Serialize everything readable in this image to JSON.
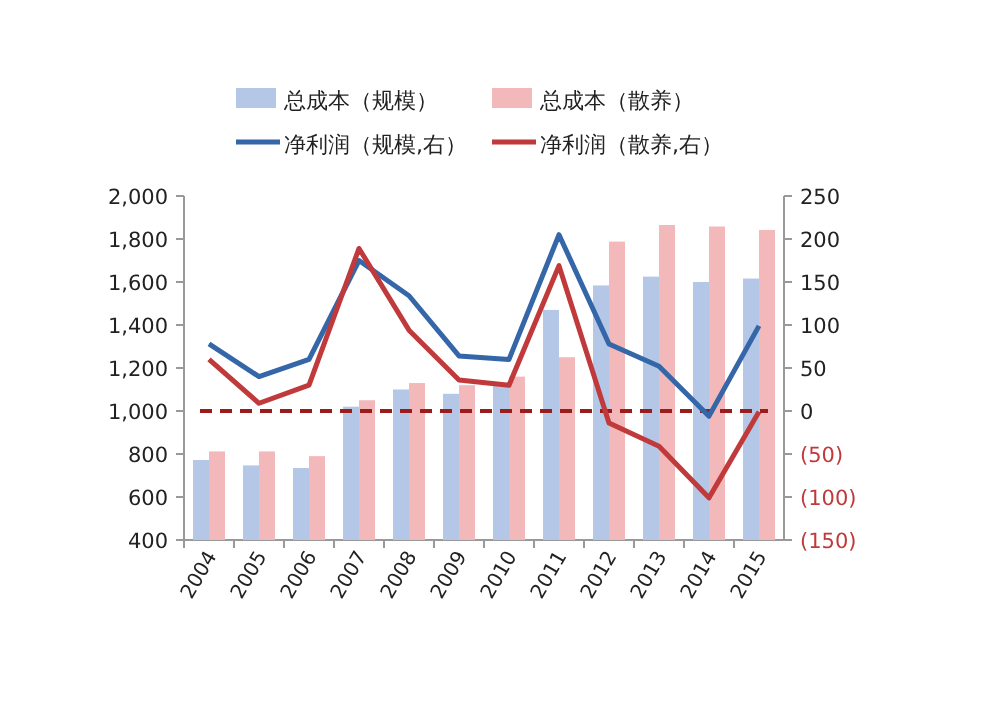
{
  "chart_data": {
    "type": "bar",
    "categories": [
      "2004",
      "2005",
      "2006",
      "2007",
      "2008",
      "2009",
      "2010",
      "2011",
      "2012",
      "2013",
      "2014",
      "2015"
    ],
    "series": [
      {
        "name": "总成本（规模）",
        "color": "#b4c7e7",
        "values": [
          772,
          747,
          735,
          1020,
          1100,
          1080,
          1120,
          1470,
          1584,
          1625,
          1600,
          1616
        ]
      },
      {
        "name": "总成本（散养）",
        "color": "#f2b8ba",
        "values": [
          812,
          812,
          790,
          1050,
          1130,
          1120,
          1160,
          1250,
          1788,
          1865,
          1858,
          1842
        ]
      },
      {
        "name": "净利润（规模,右）",
        "type": "line",
        "axis": "y2",
        "color": "#3566a8",
        "values": [
          78,
          40,
          60,
          175,
          134,
          64,
          60,
          205,
          78,
          52,
          -6,
          99
        ]
      },
      {
        "name": "净利润（散养,右）",
        "type": "line",
        "axis": "y2",
        "color": "#c0393b",
        "values": [
          60,
          9,
          30,
          189,
          94,
          36,
          30,
          169,
          -14,
          -41,
          -101,
          -1
        ]
      }
    ],
    "ylim": [
      400,
      2000
    ],
    "yticks": [
      {
        "value": 400,
        "label": "400"
      },
      {
        "value": 600,
        "label": "600"
      },
      {
        "value": 800,
        "label": "800"
      },
      {
        "value": 1000,
        "label": "1,000"
      },
      {
        "value": 1200,
        "label": "1,200"
      },
      {
        "value": 1400,
        "label": "1,400"
      },
      {
        "value": 1600,
        "label": "1,600"
      },
      {
        "value": 1800,
        "label": "1,800"
      },
      {
        "value": 2000,
        "label": "2,000"
      }
    ],
    "y2lim": [
      -150,
      250
    ],
    "y2ticks": [
      {
        "value": -150,
        "label": "(150)"
      },
      {
        "value": -100,
        "label": "(100)"
      },
      {
        "value": -50,
        "label": "(50)"
      },
      0,
      50,
      100,
      150,
      200,
      250
    ],
    "ref_lines": [
      {
        "axis": "y2",
        "value": 0,
        "color": "#9b1c1c",
        "line_style": "dashed"
      }
    ],
    "legend": "top"
  }
}
